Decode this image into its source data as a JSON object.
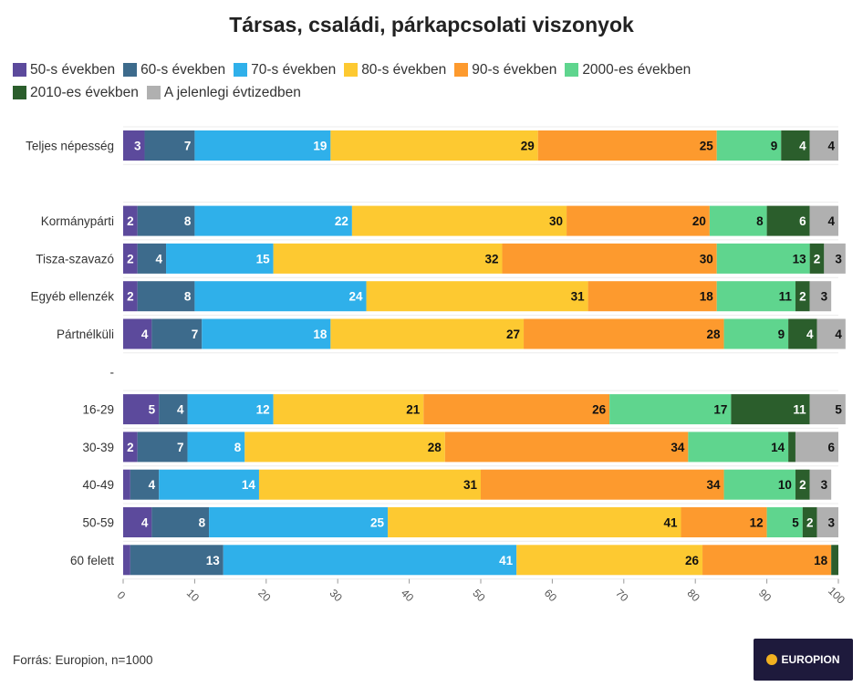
{
  "chart_data": {
    "type": "bar",
    "orientation": "horizontal",
    "stacked": true,
    "title": "Társas, családi, párkapcsolati viszonyok",
    "categories": [
      "Teljes népesség",
      "",
      "Kormánypárti",
      "Tisza-szavazó",
      "Egyéb ellenzék",
      "Pártnélküli",
      "-",
      "16-29",
      "30-39",
      "40-49",
      "50-59",
      "60 felett"
    ],
    "series": [
      {
        "name": "50-s években",
        "color": "#5c4a9c",
        "values": [
          3,
          null,
          2,
          2,
          2,
          4,
          null,
          5,
          2,
          1,
          4,
          1
        ]
      },
      {
        "name": "60-s években",
        "color": "#3d6b8c",
        "values": [
          7,
          null,
          8,
          4,
          8,
          7,
          null,
          4,
          7,
          4,
          8,
          13
        ]
      },
      {
        "name": "70-s években",
        "color": "#2fb0ea",
        "values": [
          19,
          null,
          22,
          15,
          24,
          18,
          null,
          12,
          8,
          14,
          25,
          41
        ]
      },
      {
        "name": "80-s években",
        "color": "#fdc931",
        "values": [
          29,
          null,
          30,
          32,
          31,
          27,
          null,
          21,
          28,
          31,
          41,
          26
        ]
      },
      {
        "name": "90-s években",
        "color": "#fd9a2e",
        "values": [
          25,
          null,
          20,
          30,
          18,
          28,
          null,
          26,
          34,
          34,
          12,
          18
        ]
      },
      {
        "name": "2000-es években",
        "color": "#5fd58e",
        "values": [
          9,
          null,
          8,
          13,
          11,
          9,
          null,
          17,
          14,
          10,
          5,
          0
        ]
      },
      {
        "name": "2010-es években",
        "color": "#2b5e2c",
        "values": [
          4,
          null,
          6,
          2,
          2,
          4,
          null,
          11,
          1,
          2,
          2,
          1
        ]
      },
      {
        "name": "A jelenlegi évtizedben",
        "color": "#b0b0b0",
        "values": [
          4,
          null,
          4,
          3,
          3,
          4,
          null,
          5,
          6,
          3,
          3,
          0
        ]
      }
    ],
    "label_threshold": 2,
    "xlim": [
      0,
      100
    ],
    "xticks": [
      "0",
      "10",
      "20",
      "30",
      "40",
      "50",
      "60",
      "70",
      "80",
      "90",
      "100"
    ],
    "legend_position": "top"
  },
  "source": "Forrás: Europion, n=1000",
  "logo_text": "EUROPION"
}
